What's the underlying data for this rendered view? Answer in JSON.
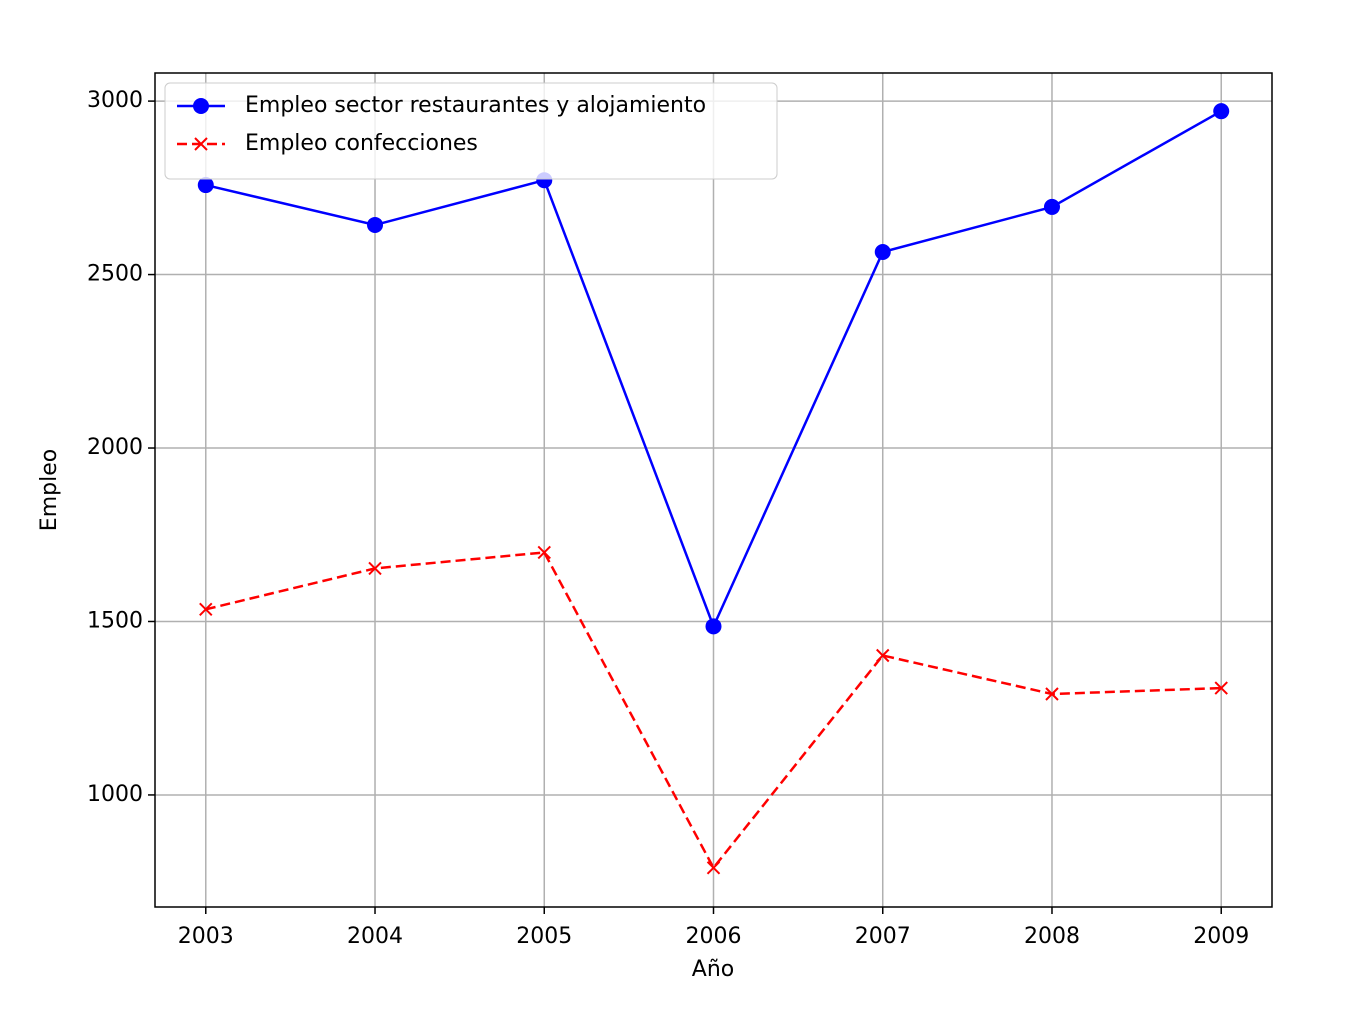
{
  "chart_data": {
    "type": "line",
    "x_label": "Año",
    "y_label": "Empleo",
    "x": [
      2003,
      2004,
      2005,
      2006,
      2007,
      2008,
      2009
    ],
    "series": [
      {
        "name": "Empleo sector restaurantes y alojamiento",
        "color": "#0000ff",
        "marker": "o",
        "linestyle": "solid",
        "values": [
          2758,
          2643,
          2772,
          1486,
          2565,
          2695,
          2971
        ]
      },
      {
        "name": "Empleo confecciones",
        "color": "#ff0000",
        "marker": "x",
        "linestyle": "dashed",
        "values": [
          1535,
          1653,
          1699,
          790,
          1402,
          1291,
          1308
        ]
      }
    ],
    "xlim": [
      2002.7,
      2009.3
    ],
    "ylim": [
      677,
      3081
    ],
    "xticks": [
      2003,
      2004,
      2005,
      2006,
      2007,
      2008,
      2009
    ],
    "yticks": [
      1000,
      1500,
      2000,
      2500,
      3000
    ],
    "grid": true,
    "legend": "upper left"
  }
}
